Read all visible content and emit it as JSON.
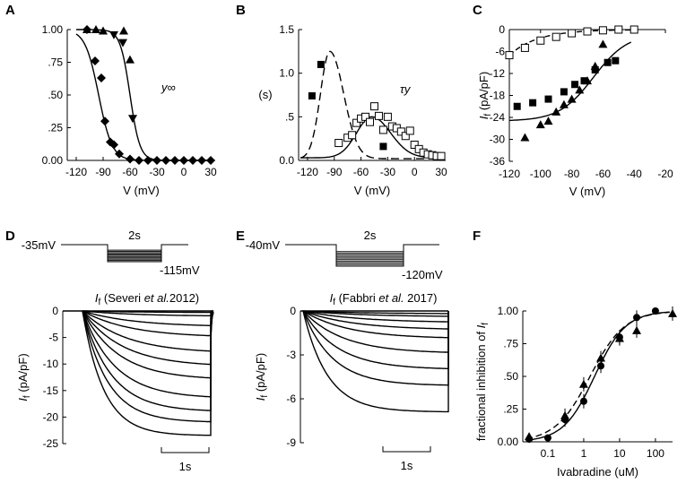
{
  "chart_data": [
    {
      "panel": "A",
      "type": "scatter",
      "xlabel": "V (mV)",
      "annotation": "y∞",
      "xlim": [
        -130,
        35
      ],
      "ylim": [
        0,
        1
      ],
      "xticks": [
        "-120",
        "-90",
        "-60",
        "-30",
        "0",
        "30"
      ],
      "yticks": [
        "0.00",
        ".25",
        ".50",
        ".75",
        "1.00"
      ],
      "series": [
        {
          "name": "triangles",
          "marker": "triangle",
          "x": [
            -108,
            -98,
            -90,
            -67,
            -60
          ],
          "y": [
            1.0,
            1.0,
            0.99,
            0.99,
            0.77
          ]
        },
        {
          "name": "inverted triangles",
          "marker": "triangle-down",
          "x": [
            -78,
            -68,
            -57
          ],
          "y": [
            0.96,
            0.9,
            0.32
          ]
        },
        {
          "name": "diamonds",
          "marker": "diamond",
          "x": [
            -108,
            -99,
            -92,
            -88,
            -82,
            -78,
            -72,
            -60,
            -50,
            -40,
            -30,
            -20,
            -10,
            0,
            10,
            20,
            30
          ],
          "y": [
            1.0,
            0.76,
            0.63,
            0.3,
            0.14,
            0.12,
            0.05,
            0.01,
            0,
            0,
            0,
            0,
            0,
            0,
            0,
            0,
            0
          ]
        }
      ],
      "curves": [
        {
          "type": "boltzmann",
          "v_half": -95,
          "k": 7.5
        },
        {
          "type": "boltzmann",
          "v_half": -60,
          "k": 5.5
        }
      ]
    },
    {
      "panel": "B",
      "type": "scatter",
      "ylabel": "(s)",
      "xlabel": "V (mV)",
      "annotation": "τy",
      "xlim": [
        -130,
        35
      ],
      "ylim": [
        0,
        1.5
      ],
      "xticks": [
        "-120",
        "-90",
        "-60",
        "-30",
        "0",
        "30"
      ],
      "yticks": [
        "0.0",
        ".5",
        "1.0",
        "1.5"
      ],
      "series": [
        {
          "name": "filled squares",
          "marker": "square",
          "x": [
            -115,
            -105,
            -35
          ],
          "y": [
            0.74,
            1.1,
            0.16
          ]
        },
        {
          "name": "open squares",
          "marker": "square-open",
          "x": [
            -85,
            -75,
            -70,
            -65,
            -60,
            -55,
            -50,
            -45,
            -40,
            -35,
            -30,
            -25,
            -20,
            -15,
            -10,
            -5,
            0,
            5,
            10,
            15,
            20,
            25,
            30
          ],
          "y": [
            0.2,
            0.26,
            0.29,
            0.43,
            0.48,
            0.5,
            0.44,
            0.62,
            0.51,
            0.35,
            0.5,
            0.39,
            0.37,
            0.33,
            0.28,
            0.34,
            0.18,
            0.13,
            0.09,
            0.07,
            0.06,
            0.05,
            0.05
          ]
        }
      ],
      "curves": [
        {
          "style": "dashed",
          "peak_v": -95,
          "peak": 1.25
        },
        {
          "style": "solid",
          "peak_v": -48,
          "peak": 0.5
        }
      ]
    },
    {
      "panel": "C",
      "type": "scatter",
      "ylabel": "I_f (pA/pF)",
      "xlabel": "V (mV)",
      "xlim": [
        -120,
        -20
      ],
      "ylim": [
        -36,
        0
      ],
      "xticks": [
        "-120",
        "-100",
        "-80",
        "-60",
        "-40",
        "-20"
      ],
      "yticks": [
        "0",
        "-6",
        "-12",
        "-18",
        "-24",
        "-30",
        "-36"
      ],
      "series": [
        {
          "name": "open squares",
          "marker": "square-open",
          "x": [
            -120,
            -110,
            -100,
            -90,
            -80,
            -70,
            -60,
            -50,
            -40
          ],
          "y": [
            -7,
            -5,
            -3,
            -2,
            -1,
            -0.5,
            -0.2,
            0,
            0
          ]
        },
        {
          "name": "filled squares",
          "marker": "square",
          "x": [
            -115,
            -105,
            -95,
            -85,
            -78,
            -72,
            -65,
            -57,
            -52
          ],
          "y": [
            -21,
            -20,
            -19,
            -17,
            -15,
            -14,
            -11,
            -9,
            -8.5
          ]
        },
        {
          "name": "triangles",
          "marker": "triangle",
          "x": [
            -110,
            -100,
            -95,
            -90,
            -85,
            -80,
            -75,
            -70,
            -65,
            -60
          ],
          "y": [
            -29.5,
            -26,
            -25,
            -22.5,
            -20.5,
            -19,
            -16.5,
            -14,
            -10,
            -4
          ]
        }
      ]
    },
    {
      "panel": "D",
      "type": "line",
      "title_pre": "I",
      "title_sub": "f",
      "title_mid": " (Severi ",
      "title_it": "et al.",
      "title_post": "2012)",
      "ylabel": "I_f (pA/pF)",
      "protocol": {
        "hold": "-35mV",
        "duration": "2s",
        "step": "-115mV"
      },
      "scalebar": "1s",
      "ylim": [
        -25,
        0
      ],
      "yticks": [
        "0",
        "-5",
        "-10",
        "-15",
        "-20",
        "-25"
      ],
      "series_steady": [
        -0.3,
        -1,
        -3,
        -5,
        -8,
        -10.5,
        -13,
        -16.5,
        -19,
        -21,
        -23.5
      ]
    },
    {
      "panel": "E",
      "type": "line",
      "title_pre": "I",
      "title_sub": "f",
      "title_mid": " (Fabbri ",
      "title_it": "et al.",
      "title_post": " 2017)",
      "ylabel": "I_f (pA/pF)",
      "protocol": {
        "hold": "-40mV",
        "duration": "2s",
        "step": "-120mV"
      },
      "scalebar": "1s",
      "ylim": [
        -9,
        0
      ],
      "yticks": [
        "0",
        "-3",
        "-6",
        "-9"
      ],
      "series_steady": [
        -0.2,
        -0.4,
        -0.8,
        -1.3,
        -1.9,
        -2.9,
        -4,
        -5.1,
        -6.9
      ]
    },
    {
      "panel": "F",
      "type": "scatter",
      "ylabel": "fractional inhibition of I_f",
      "xlabel": "Ivabradine (uM)",
      "xlim_log": [
        0.02,
        300
      ],
      "ylim": [
        0,
        1
      ],
      "xticks": [
        "0.1",
        "1",
        "10",
        "100"
      ],
      "yticks": [
        "0.00",
        ".25",
        ".50",
        ".75",
        "1.00"
      ],
      "series": [
        {
          "name": "circles",
          "marker": "circle",
          "x": [
            0.03,
            0.1,
            0.3,
            1,
            3,
            10,
            30,
            100
          ],
          "y": [
            0.02,
            0.03,
            0.17,
            0.31,
            0.58,
            0.8,
            0.95,
            1.0
          ]
        },
        {
          "name": "triangles",
          "marker": "triangle",
          "x": [
            0.03,
            0.3,
            1,
            3,
            10,
            30,
            300
          ],
          "y": [
            0.04,
            0.2,
            0.44,
            0.64,
            0.79,
            0.85,
            0.98
          ]
        }
      ],
      "fits": [
        {
          "ic50": 2.0,
          "n": 1.0
        },
        {
          "ic50": 1.5,
          "n": 0.9
        }
      ]
    }
  ],
  "panel_letters": [
    "A",
    "B",
    "C",
    "D",
    "E",
    "F"
  ]
}
